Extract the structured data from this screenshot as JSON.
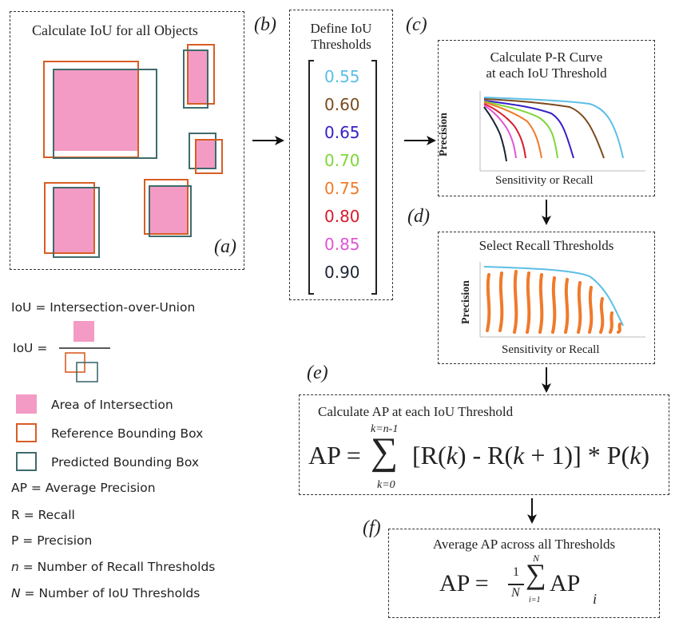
{
  "panel_a": {
    "letter": "(a)",
    "title": "Calculate IoU for all Objects",
    "colors": {
      "intersection": "#f39bc4",
      "reference": "#d85d24",
      "predicted": "#3f6b6c"
    }
  },
  "panel_b": {
    "letter": "(b)",
    "title_line1": "Define IoU",
    "title_line2": "Thresholds",
    "thresholds": [
      {
        "value": "0.55",
        "color": "#5bbfe6"
      },
      {
        "value": "0.60",
        "color": "#7a4a1e"
      },
      {
        "value": "0.65",
        "color": "#3420c8"
      },
      {
        "value": "0.70",
        "color": "#7fd63a"
      },
      {
        "value": "0.75",
        "color": "#f07a2b"
      },
      {
        "value": "0.80",
        "color": "#d61c2c"
      },
      {
        "value": "0.85",
        "color": "#e055d6"
      },
      {
        "value": "0.90",
        "color": "#1c2533"
      }
    ]
  },
  "panel_c": {
    "letter": "(c)",
    "title_line1": "Calculate P-R Curve",
    "title_line2": "at each IoU Threshold",
    "ylabel": "Precision",
    "xlabel": "Sensitivity or Recall"
  },
  "panel_d": {
    "letter": "(d)",
    "title": "Select Recall Thresholds",
    "ylabel": "Precision",
    "xlabel": "Sensitivity or Recall",
    "curve_color": "#5bbfe6",
    "threshold_color": "#f07a2b"
  },
  "panel_e": {
    "letter": "(e)",
    "title": "Calculate AP at each IoU Threshold",
    "lhs": "AP =",
    "sum_top": "k=n-1",
    "sum_bottom": "k=0",
    "sigma": "∑",
    "rhs_a": "[R(",
    "rhs_k1": "k",
    "rhs_b": ") - R(",
    "rhs_k2": "k",
    "rhs_c": " + 1)] * P(",
    "rhs_k3": "k",
    "rhs_d": ")"
  },
  "panel_f": {
    "letter": "(f)",
    "title": "Average AP across all Thresholds",
    "lhs": "AP =",
    "frac_num": "1",
    "frac_den": "N",
    "sum_top": "N",
    "sum_bottom": "i=1",
    "sigma": "∑",
    "term": "AP",
    "sub": "i"
  },
  "legend": {
    "iou_def": "IoU = Intersection-over-Union",
    "iou_eq": "IoU =",
    "intersection": "Area of Intersection",
    "reference": "Reference Bounding Box",
    "predicted": "Predicted Bounding Box",
    "ap": "AP = Average Precision",
    "r": "R = Recall",
    "p": "P = Precision",
    "n_var": "n",
    "n_rest": " = Number of Recall Thresholds",
    "N_var": "N",
    "N_rest": " = Number of IoU Thresholds"
  }
}
